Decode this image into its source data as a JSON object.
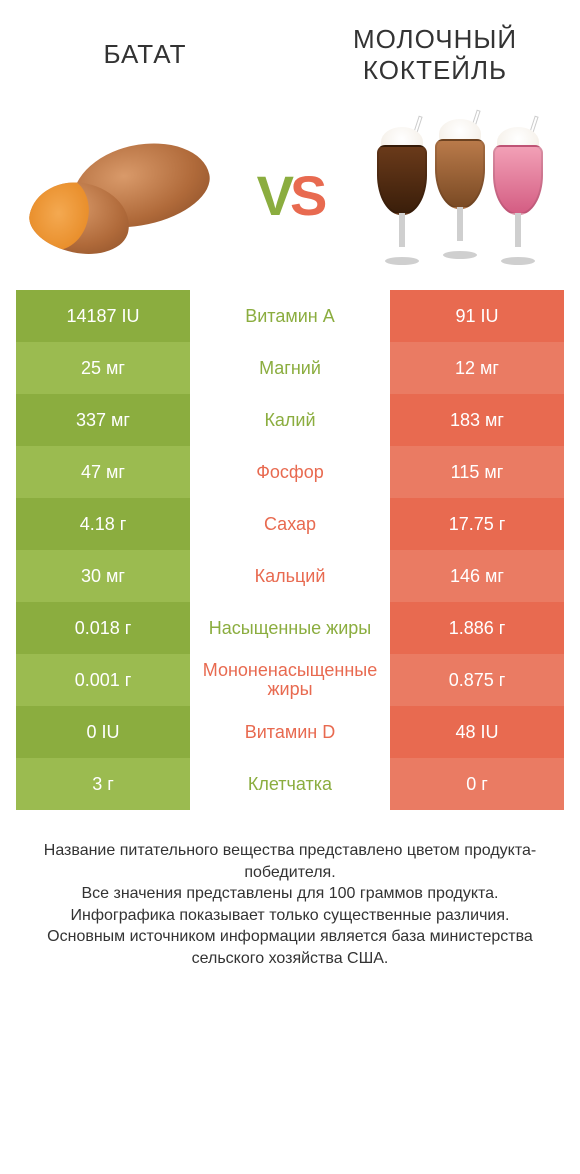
{
  "colors": {
    "left": {
      "dark": "#8bad3f",
      "light": "#9bbb50"
    },
    "right": {
      "dark": "#e86a50",
      "light": "#ea7b63"
    },
    "vs_v": "#8bad3f",
    "vs_s": "#e86a50"
  },
  "header": {
    "left_title": "БАТАТ",
    "right_title": "МОЛОЧНЫЙ КОКТЕЙЛЬ"
  },
  "vs_label": "VS",
  "rows": [
    {
      "label": "Витамин A",
      "left": "14187 IU",
      "right": "91 IU",
      "winner": "left"
    },
    {
      "label": "Магний",
      "left": "25 мг",
      "right": "12 мг",
      "winner": "left"
    },
    {
      "label": "Калий",
      "left": "337 мг",
      "right": "183 мг",
      "winner": "left"
    },
    {
      "label": "Фосфор",
      "left": "47 мг",
      "right": "115 мг",
      "winner": "right"
    },
    {
      "label": "Сахар",
      "left": "4.18 г",
      "right": "17.75 г",
      "winner": "right"
    },
    {
      "label": "Кальций",
      "left": "30 мг",
      "right": "146 мг",
      "winner": "right"
    },
    {
      "label": "Насыщенные жиры",
      "left": "0.018 г",
      "right": "1.886 г",
      "winner": "left"
    },
    {
      "label": "Мононенасыщенные жиры",
      "left": "0.001 г",
      "right": "0.875 г",
      "winner": "right"
    },
    {
      "label": "Витамин D",
      "left": "0 IU",
      "right": "48 IU",
      "winner": "right"
    },
    {
      "label": "Клетчатка",
      "left": "3 г",
      "right": "0 г",
      "winner": "left"
    }
  ],
  "footer": {
    "line1": "Название питательного вещества представлено цветом продукта-победителя.",
    "line2": "Все значения представлены для 100 граммов продукта.",
    "line3": "Инфографика показывает только существенные различия.",
    "line4": "Основным источником информации является база министерства сельского хозяйства США."
  }
}
